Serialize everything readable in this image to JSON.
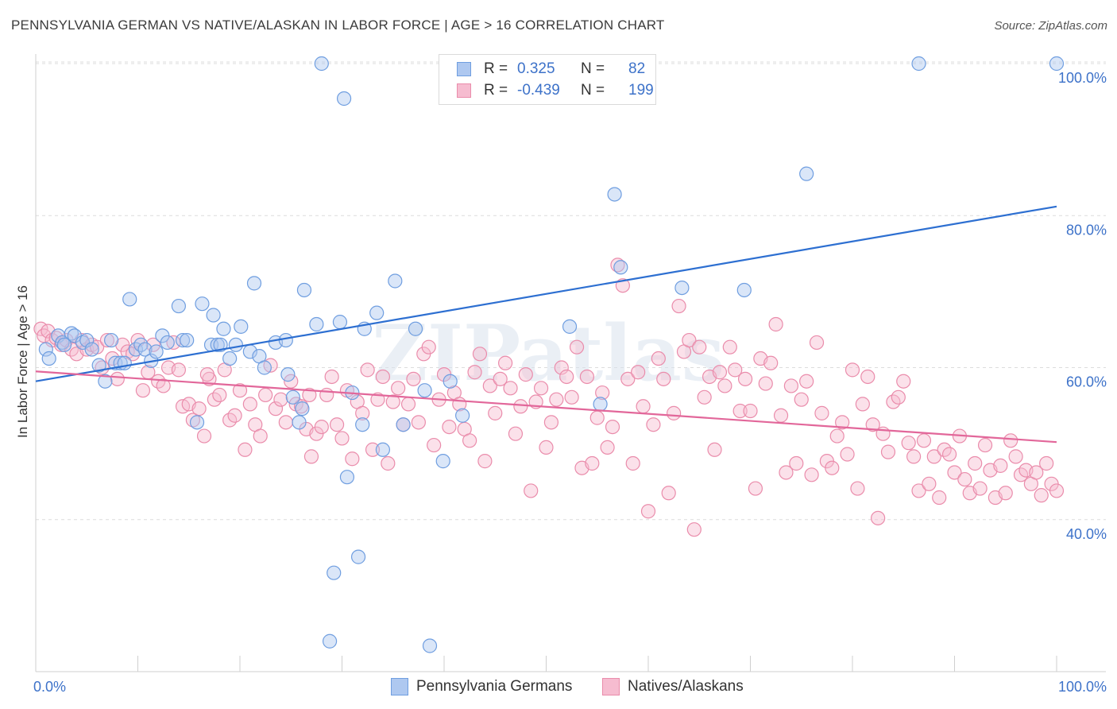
{
  "title": "PENNSYLVANIA GERMAN VS NATIVE/ALASKAN IN LABOR FORCE | AGE > 16 CORRELATION CHART",
  "source": "Source: ZipAtlas.com",
  "watermark": "ZIPatlas",
  "legend": {
    "rows": [
      {
        "r_label": "R =",
        "r_value": "0.325",
        "n_label": "N =",
        "n_value": "82"
      },
      {
        "r_label": "R =",
        "r_value": "-0.439",
        "n_label": "N =",
        "n_value": "199"
      }
    ]
  },
  "bottom_legend": [
    "Pennsylvania Germans",
    "Natives/Alaskans"
  ],
  "colors": {
    "blue_fill": "#aec8f0",
    "blue_stroke": "#6f9ee0",
    "blue_line": "#2d6fd1",
    "pink_fill": "#f6bcd0",
    "pink_stroke": "#ea8cab",
    "pink_line": "#e2679a",
    "value_text": "#3d72c9",
    "grid": "#dcdcdc"
  },
  "chart_data": {
    "type": "scatter",
    "title": "PENNSYLVANIA GERMAN VS NATIVE/ALASKAN IN LABOR FORCE | AGE > 16 CORRELATION CHART",
    "xlabel": "",
    "ylabel": "In Labor Force | Age > 16",
    "xlim": [
      0,
      100
    ],
    "ylim": [
      20,
      102
    ],
    "x_tick_labels": [
      "0.0%",
      "100.0%"
    ],
    "y_ticks": [
      40,
      60,
      80,
      100
    ],
    "y_tick_labels": [
      "40.0%",
      "60.0%",
      "80.0%",
      "100.0%"
    ],
    "grid": true,
    "legend_position": "top-center",
    "series": [
      {
        "name": "Pennsylvania Germans",
        "r": 0.325,
        "n": 82,
        "trend": [
          [
            0,
            58.2
          ],
          [
            100,
            81.2
          ]
        ],
        "points": [
          [
            1,
            62.4
          ],
          [
            1.3,
            61.2
          ],
          [
            2.2,
            64.2
          ],
          [
            2.6,
            63.3
          ],
          [
            2.8,
            63
          ],
          [
            3.5,
            64.5
          ],
          [
            3.8,
            64.2
          ],
          [
            4.6,
            63.3
          ],
          [
            5,
            63.6
          ],
          [
            5.5,
            62.4
          ],
          [
            6.2,
            60.3
          ],
          [
            6.8,
            58.2
          ],
          [
            7.4,
            63.6
          ],
          [
            7.8,
            60.6
          ],
          [
            8.3,
            60.6
          ],
          [
            8.7,
            60.6
          ],
          [
            9.2,
            69
          ],
          [
            9.8,
            62.4
          ],
          [
            10.3,
            63
          ],
          [
            10.7,
            62.4
          ],
          [
            11.3,
            60.9
          ],
          [
            11.8,
            62.1
          ],
          [
            12.4,
            64.2
          ],
          [
            12.9,
            63.3
          ],
          [
            14,
            68.1
          ],
          [
            14.4,
            63.6
          ],
          [
            14.8,
            63.6
          ],
          [
            15.8,
            52.8
          ],
          [
            16.3,
            68.4
          ],
          [
            17.2,
            63
          ],
          [
            17.4,
            66.9
          ],
          [
            17.8,
            63
          ],
          [
            18.1,
            63
          ],
          [
            18.4,
            65.1
          ],
          [
            19,
            61.2
          ],
          [
            19.6,
            63
          ],
          [
            20.1,
            65.4
          ],
          [
            21,
            62.1
          ],
          [
            21.4,
            71.1
          ],
          [
            21.9,
            61.5
          ],
          [
            22.4,
            60
          ],
          [
            23.5,
            63.3
          ],
          [
            24.5,
            63.6
          ],
          [
            24.7,
            59.1
          ],
          [
            25.2,
            56.1
          ],
          [
            25.8,
            52.8
          ],
          [
            26.1,
            54.6
          ],
          [
            26.3,
            70.2
          ],
          [
            27.5,
            65.7
          ],
          [
            28,
            100
          ],
          [
            28.8,
            24
          ],
          [
            29.2,
            33
          ],
          [
            29.8,
            66
          ],
          [
            30.2,
            95.4
          ],
          [
            30.5,
            45.6
          ],
          [
            31,
            56.7
          ],
          [
            31.6,
            35.1
          ],
          [
            32,
            52.5
          ],
          [
            32.2,
            65.1
          ],
          [
            33.4,
            67.2
          ],
          [
            34,
            49.2
          ],
          [
            35.2,
            71.4
          ],
          [
            36,
            52.5
          ],
          [
            37.2,
            65.1
          ],
          [
            38.1,
            57
          ],
          [
            38.6,
            23.4
          ],
          [
            39.9,
            47.7
          ],
          [
            40.6,
            58.2
          ],
          [
            41.8,
            53.7
          ],
          [
            44,
            96
          ],
          [
            48.6,
            100
          ],
          [
            52.3,
            65.4
          ],
          [
            55.3,
            55.2
          ],
          [
            56.7,
            82.8
          ],
          [
            57.3,
            73.2
          ],
          [
            63.3,
            70.5
          ],
          [
            69.4,
            70.2
          ],
          [
            75.5,
            85.5
          ],
          [
            86.5,
            100
          ],
          [
            100,
            100
          ]
        ]
      },
      {
        "name": "Natives/Alaskans",
        "r": -0.439,
        "n": 199,
        "trend": [
          [
            0,
            59.5
          ],
          [
            100,
            50.2
          ]
        ],
        "points": [
          [
            0.5,
            65.1
          ],
          [
            0.8,
            64.2
          ],
          [
            1.2,
            64.8
          ],
          [
            1.6,
            63.6
          ],
          [
            2,
            63.9
          ],
          [
            2.5,
            63
          ],
          [
            3,
            63.6
          ],
          [
            3.5,
            62.4
          ],
          [
            4,
            61.8
          ],
          [
            4.5,
            63.6
          ],
          [
            5,
            62.4
          ],
          [
            5.5,
            63
          ],
          [
            6,
            62.7
          ],
          [
            6.5,
            60
          ],
          [
            7,
            63.6
          ],
          [
            7.5,
            61.2
          ],
          [
            8,
            58.5
          ],
          [
            8.5,
            63
          ],
          [
            9,
            62.1
          ],
          [
            9.5,
            61.8
          ],
          [
            10,
            63.6
          ],
          [
            10.5,
            57
          ],
          [
            11,
            59.4
          ],
          [
            11.5,
            63
          ],
          [
            12,
            58.2
          ],
          [
            12.5,
            57.6
          ],
          [
            13,
            60
          ],
          [
            13.5,
            63.3
          ],
          [
            14,
            59.7
          ],
          [
            14.4,
            54.9
          ],
          [
            15,
            55.2
          ],
          [
            15.4,
            53.1
          ],
          [
            16,
            54.6
          ],
          [
            16.5,
            51
          ],
          [
            17,
            58.5
          ],
          [
            17.5,
            55.8
          ],
          [
            18,
            56.4
          ],
          [
            18.5,
            59.7
          ],
          [
            19,
            53.1
          ],
          [
            19.5,
            53.7
          ],
          [
            20,
            57
          ],
          [
            20.5,
            49.2
          ],
          [
            21,
            55.2
          ],
          [
            21.5,
            52.5
          ],
          [
            22,
            51
          ],
          [
            22.5,
            56.4
          ],
          [
            23,
            60.3
          ],
          [
            23.5,
            54.6
          ],
          [
            24,
            55.8
          ],
          [
            24.5,
            52.8
          ],
          [
            25,
            58.2
          ],
          [
            25.5,
            55.2
          ],
          [
            26,
            54.9
          ],
          [
            26.5,
            51.9
          ],
          [
            27,
            48.3
          ],
          [
            27.5,
            51.3
          ],
          [
            28,
            52.2
          ],
          [
            28.5,
            56.4
          ],
          [
            29,
            58.8
          ],
          [
            29.5,
            52.5
          ],
          [
            30,
            50.7
          ],
          [
            30.5,
            57
          ],
          [
            31,
            48
          ],
          [
            31.5,
            55.5
          ],
          [
            32,
            54
          ],
          [
            32.5,
            59.7
          ],
          [
            33,
            49.2
          ],
          [
            33.5,
            55.8
          ],
          [
            34,
            58.8
          ],
          [
            34.5,
            47.4
          ],
          [
            35,
            55.5
          ],
          [
            35.5,
            57.3
          ],
          [
            36,
            52.5
          ],
          [
            36.5,
            55.2
          ],
          [
            37,
            58.5
          ],
          [
            37.5,
            52.8
          ],
          [
            38,
            61.8
          ],
          [
            38.5,
            62.7
          ],
          [
            39,
            49.8
          ],
          [
            39.5,
            55.8
          ],
          [
            40,
            59.1
          ],
          [
            40.5,
            52.2
          ],
          [
            41,
            56.7
          ],
          [
            41.5,
            55.2
          ],
          [
            42,
            51.9
          ],
          [
            42.5,
            50.4
          ],
          [
            43,
            59.4
          ],
          [
            43.5,
            61.8
          ],
          [
            44,
            47.7
          ],
          [
            44.5,
            57.6
          ],
          [
            45,
            54
          ],
          [
            45.5,
            58.5
          ],
          [
            46,
            60.6
          ],
          [
            46.5,
            57.3
          ],
          [
            47,
            51.3
          ],
          [
            47.5,
            54.9
          ],
          [
            48,
            59.1
          ],
          [
            48.5,
            43.8
          ],
          [
            49,
            55.5
          ],
          [
            49.5,
            57.3
          ],
          [
            50,
            49.5
          ],
          [
            50.5,
            52.8
          ],
          [
            51,
            55.8
          ],
          [
            51.5,
            60
          ],
          [
            52,
            58.8
          ],
          [
            52.5,
            56.1
          ],
          [
            53,
            62.7
          ],
          [
            53.5,
            46.8
          ],
          [
            54,
            58.8
          ],
          [
            54.5,
            47.4
          ],
          [
            55,
            53.4
          ],
          [
            55.5,
            56.7
          ],
          [
            56,
            49.5
          ],
          [
            56.5,
            52.2
          ],
          [
            57,
            73.5
          ],
          [
            57.5,
            70.8
          ],
          [
            58,
            58.5
          ],
          [
            58.5,
            47.4
          ],
          [
            59,
            59.4
          ],
          [
            59.5,
            54.9
          ],
          [
            60,
            41.1
          ],
          [
            60.5,
            52.5
          ],
          [
            61,
            61.2
          ],
          [
            61.5,
            58.5
          ],
          [
            62,
            43.5
          ],
          [
            62.5,
            54
          ],
          [
            63,
            68.1
          ],
          [
            63.5,
            62.1
          ],
          [
            64,
            63.6
          ],
          [
            64.5,
            38.7
          ],
          [
            65,
            62.7
          ],
          [
            65.5,
            56.1
          ],
          [
            66,
            58.8
          ],
          [
            66.5,
            49.2
          ],
          [
            67,
            59.4
          ],
          [
            67.5,
            57.6
          ],
          [
            68,
            62.7
          ],
          [
            68.5,
            59.7
          ],
          [
            69,
            54.3
          ],
          [
            69.5,
            58.5
          ],
          [
            70,
            54.3
          ],
          [
            70.5,
            44.1
          ],
          [
            71,
            61.2
          ],
          [
            71.5,
            57.9
          ],
          [
            72,
            60.6
          ],
          [
            72.5,
            65.7
          ],
          [
            73,
            53.7
          ],
          [
            73.5,
            46.2
          ],
          [
            74,
            57.6
          ],
          [
            74.5,
            47.4
          ],
          [
            75,
            55.8
          ],
          [
            75.5,
            58.2
          ],
          [
            76,
            45.9
          ],
          [
            76.5,
            63.3
          ],
          [
            77,
            54
          ],
          [
            77.5,
            47.7
          ],
          [
            78,
            46.8
          ],
          [
            78.5,
            51
          ],
          [
            79,
            52.8
          ],
          [
            79.5,
            48.6
          ],
          [
            80,
            59.7
          ],
          [
            80.5,
            44.1
          ],
          [
            81,
            55.2
          ],
          [
            81.5,
            58.8
          ],
          [
            82,
            52.5
          ],
          [
            82.5,
            40.2
          ],
          [
            83,
            51.3
          ],
          [
            83.5,
            48.9
          ],
          [
            84,
            55.5
          ],
          [
            84.5,
            56.1
          ],
          [
            85,
            58.2
          ],
          [
            85.5,
            50.1
          ],
          [
            86,
            48.3
          ],
          [
            86.5,
            43.8
          ],
          [
            87,
            50.4
          ],
          [
            87.5,
            44.7
          ],
          [
            88,
            48.3
          ],
          [
            88.5,
            42.9
          ],
          [
            89,
            49.2
          ],
          [
            89.5,
            48.6
          ],
          [
            90,
            46.2
          ],
          [
            90.5,
            51
          ],
          [
            91,
            45.3
          ],
          [
            91.5,
            43.5
          ],
          [
            92,
            47.4
          ],
          [
            92.5,
            44.1
          ],
          [
            93,
            49.8
          ],
          [
            93.5,
            46.5
          ],
          [
            94,
            42.9
          ],
          [
            94.5,
            47.1
          ],
          [
            95,
            43.5
          ],
          [
            95.5,
            50.4
          ],
          [
            96,
            48.3
          ],
          [
            96.5,
            45.9
          ],
          [
            97,
            46.5
          ],
          [
            97.5,
            44.7
          ],
          [
            98,
            46.2
          ],
          [
            98.5,
            43.2
          ],
          [
            99,
            47.4
          ],
          [
            99.5,
            44.7
          ],
          [
            100,
            43.8
          ],
          [
            16.8,
            59.1
          ],
          [
            26.8,
            56.4
          ]
        ]
      }
    ]
  }
}
